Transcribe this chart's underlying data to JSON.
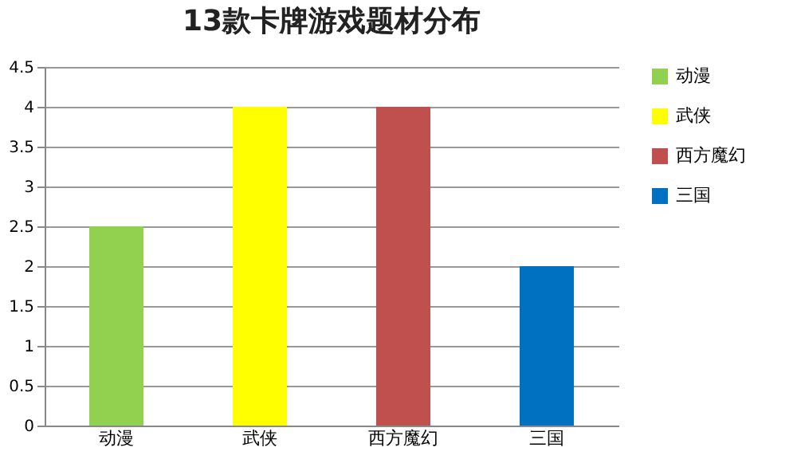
{
  "chart_data": {
    "type": "bar",
    "title": "13款卡牌游戏题材分布",
    "categories": [
      "动漫",
      "武侠",
      "西方魔幻",
      "三国"
    ],
    "series": [
      {
        "name": "动漫",
        "color": "#92d050",
        "values": [
          2.5,
          null,
          null,
          null
        ]
      },
      {
        "name": "武侠",
        "color": "#ffff00",
        "values": [
          null,
          4,
          null,
          null
        ]
      },
      {
        "name": "西方魔幻",
        "color": "#c0504d",
        "values": [
          null,
          null,
          4,
          null
        ]
      },
      {
        "name": "三国",
        "color": "#0070c0",
        "values": [
          null,
          null,
          null,
          2
        ]
      }
    ],
    "ylim": [
      0,
      4.5
    ],
    "yticks": [
      0,
      0.5,
      1,
      1.5,
      2,
      2.5,
      3,
      3.5,
      4,
      4.5
    ],
    "grid": "y",
    "legend": "right"
  }
}
